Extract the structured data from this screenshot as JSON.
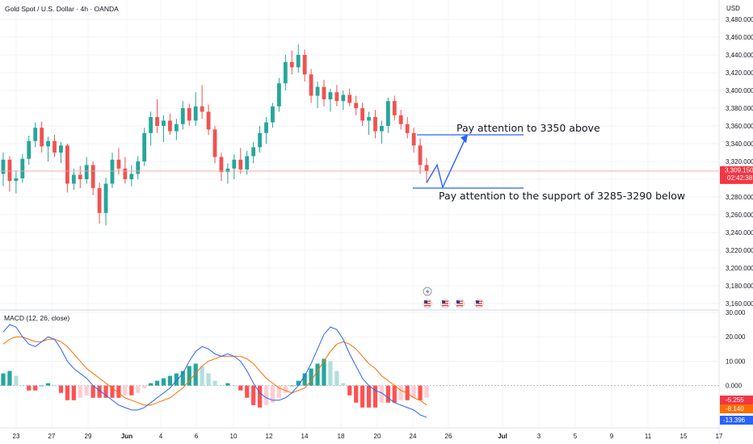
{
  "header": {
    "symbol_title": "Gold Spot / U.S. Dollar · 4h · OANDA",
    "currency": "USD"
  },
  "colors": {
    "up": "#26a69a",
    "down": "#ef5350",
    "macd_line": "#2962ff",
    "signal_line": "#ff6d00",
    "trend_line": "#2962ff",
    "price_line": "#f7a1a1"
  },
  "chart_data": [
    {
      "type": "candlestick",
      "title": "Gold Spot / U.S. Dollar · 4h · OANDA",
      "ylabel": "USD",
      "ylim": [
        3150,
        3490
      ],
      "y_ticks": [
        "3,480.000",
        "3,460.000",
        "3,440.000",
        "3,420.000",
        "3,400.000",
        "3,380.000",
        "3,360.000",
        "3,340.000",
        "3,320.000",
        "3,300.000",
        "3,280.000",
        "3,260.000",
        "3,240.000",
        "3,220.000",
        "3,200.000",
        "3,180.000",
        "3,160.000"
      ],
      "last_price_label": "3,309.150",
      "countdown_label": "02:42:38",
      "x_labels": [
        "23",
        "27",
        "29",
        "Jun",
        "4",
        "6",
        "10",
        "12",
        "14",
        "18",
        "20",
        "24",
        "26",
        "Jul",
        "3",
        "5",
        "9",
        "11",
        "15",
        "17"
      ],
      "candles": [
        [
          3306,
          3330,
          3292,
          3322
        ],
        [
          3322,
          3326,
          3286,
          3298
        ],
        [
          3298,
          3310,
          3284,
          3301
        ],
        [
          3301,
          3328,
          3296,
          3323
        ],
        [
          3323,
          3349,
          3316,
          3343
        ],
        [
          3343,
          3364,
          3336,
          3358
        ],
        [
          3358,
          3365,
          3330,
          3337
        ],
        [
          3337,
          3348,
          3320,
          3343
        ],
        [
          3343,
          3350,
          3325,
          3330
        ],
        [
          3330,
          3342,
          3318,
          3338
        ],
        [
          3338,
          3340,
          3285,
          3295
        ],
        [
          3295,
          3312,
          3288,
          3305
        ],
        [
          3305,
          3315,
          3290,
          3300
        ],
        [
          3300,
          3325,
          3295,
          3316
        ],
        [
          3316,
          3320,
          3282,
          3290
        ],
        [
          3290,
          3296,
          3250,
          3262
        ],
        [
          3262,
          3302,
          3248,
          3295
        ],
        [
          3295,
          3330,
          3290,
          3322
        ],
        [
          3322,
          3335,
          3305,
          3312
        ],
        [
          3312,
          3325,
          3295,
          3300
        ],
        [
          3300,
          3316,
          3292,
          3306
        ],
        [
          3306,
          3326,
          3300,
          3320
        ],
        [
          3320,
          3358,
          3315,
          3352
        ],
        [
          3352,
          3376,
          3338,
          3370
        ],
        [
          3370,
          3390,
          3352,
          3360
        ],
        [
          3360,
          3372,
          3342,
          3366
        ],
        [
          3366,
          3374,
          3350,
          3354
        ],
        [
          3354,
          3368,
          3344,
          3362
        ],
        [
          3362,
          3388,
          3356,
          3380
        ],
        [
          3380,
          3385,
          3360,
          3366
        ],
        [
          3366,
          3398,
          3360,
          3382
        ],
        [
          3382,
          3406,
          3368,
          3376
        ],
        [
          3376,
          3384,
          3350,
          3356
        ],
        [
          3356,
          3360,
          3318,
          3325
        ],
        [
          3325,
          3330,
          3298,
          3308
        ],
        [
          3308,
          3318,
          3295,
          3312
        ],
        [
          3312,
          3328,
          3300,
          3322
        ],
        [
          3322,
          3335,
          3306,
          3311
        ],
        [
          3311,
          3332,
          3305,
          3326
        ],
        [
          3326,
          3342,
          3318,
          3336
        ],
        [
          3336,
          3360,
          3330,
          3352
        ],
        [
          3352,
          3370,
          3340,
          3364
        ],
        [
          3364,
          3386,
          3358,
          3382
        ],
        [
          3382,
          3414,
          3376,
          3408
        ],
        [
          3408,
          3440,
          3400,
          3432
        ],
        [
          3432,
          3445,
          3418,
          3426
        ],
        [
          3426,
          3452,
          3420,
          3440
        ],
        [
          3440,
          3446,
          3410,
          3418
        ],
        [
          3418,
          3424,
          3386,
          3394
        ],
        [
          3394,
          3410,
          3380,
          3404
        ],
        [
          3404,
          3412,
          3382,
          3390
        ],
        [
          3390,
          3402,
          3376,
          3398
        ],
        [
          3398,
          3406,
          3382,
          3388
        ],
        [
          3388,
          3400,
          3378,
          3395
        ],
        [
          3395,
          3402,
          3382,
          3386
        ],
        [
          3386,
          3394,
          3372,
          3380
        ],
        [
          3380,
          3386,
          3360,
          3366
        ],
        [
          3366,
          3376,
          3350,
          3370
        ],
        [
          3370,
          3378,
          3346,
          3354
        ],
        [
          3354,
          3366,
          3340,
          3360
        ],
        [
          3360,
          3392,
          3352,
          3388
        ],
        [
          3388,
          3394,
          3366,
          3372
        ],
        [
          3372,
          3378,
          3356,
          3362
        ],
        [
          3362,
          3370,
          3346,
          3352
        ],
        [
          3352,
          3358,
          3330,
          3338
        ],
        [
          3338,
          3346,
          3306,
          3316
        ],
        [
          3316,
          3324,
          3296,
          3309
        ]
      ],
      "annotations": [
        "Pay attention to 3350 above",
        "Pay attention to the support of 3285-3290 below"
      ],
      "event_icons": 4
    },
    {
      "type": "macd",
      "title": "MACD (12, 26, close)",
      "ylim": [
        -16,
        31
      ],
      "y_ticks": [
        "30.000",
        "20.000",
        "10.000",
        "0.000"
      ],
      "value_labels": [
        "-5.255",
        "-8.140",
        "-13.396"
      ],
      "macd": [
        22,
        25,
        24,
        20,
        17,
        16,
        18,
        20,
        19,
        15,
        10,
        7,
        5,
        3,
        0,
        -2,
        -4,
        -6,
        -8,
        -9,
        -10,
        -10,
        -9,
        -7,
        -5,
        -3,
        -1,
        2,
        5,
        10,
        14,
        16,
        15,
        13,
        12,
        13,
        12,
        10,
        6,
        1,
        -3,
        -5,
        -6,
        -6,
        -5,
        -3,
        0,
        4,
        9,
        15,
        21,
        24,
        23,
        19,
        13,
        8,
        3,
        0,
        -2,
        -3,
        -5,
        -7,
        -8,
        -9,
        -10,
        -12,
        -13
      ],
      "signal": [
        17,
        19,
        20,
        20,
        19,
        18,
        18,
        19,
        19,
        18,
        16,
        13,
        10,
        7,
        5,
        3,
        1,
        -1,
        -3,
        -5,
        -6,
        -7,
        -8,
        -8,
        -7,
        -6,
        -5,
        -3,
        -1,
        2,
        5,
        8,
        10,
        11,
        12,
        12,
        12,
        12,
        11,
        9,
        6,
        3,
        1,
        -1,
        -2,
        -3,
        -2,
        -1,
        2,
        6,
        10,
        14,
        17,
        18,
        17,
        15,
        12,
        9,
        7,
        4,
        2,
        0,
        -2,
        -3,
        -5,
        -6,
        -8
      ],
      "histogram": [
        5,
        6,
        4,
        0,
        -2,
        -2,
        0,
        1,
        0,
        -3,
        -6,
        -6,
        -5,
        -4,
        -5,
        -5,
        -5,
        -5,
        -5,
        -4,
        -4,
        -3,
        -1,
        1,
        2,
        3,
        4,
        5,
        6,
        8,
        9,
        8,
        5,
        2,
        0,
        1,
        0,
        -2,
        -5,
        -8,
        -9,
        -8,
        -7,
        -5,
        -3,
        0,
        2,
        5,
        7,
        9,
        11,
        10,
        6,
        1,
        -4,
        -7,
        -9,
        -9,
        -9,
        -7,
        -7,
        -7,
        -6,
        -6,
        -5,
        -6,
        -5
      ]
    }
  ]
}
